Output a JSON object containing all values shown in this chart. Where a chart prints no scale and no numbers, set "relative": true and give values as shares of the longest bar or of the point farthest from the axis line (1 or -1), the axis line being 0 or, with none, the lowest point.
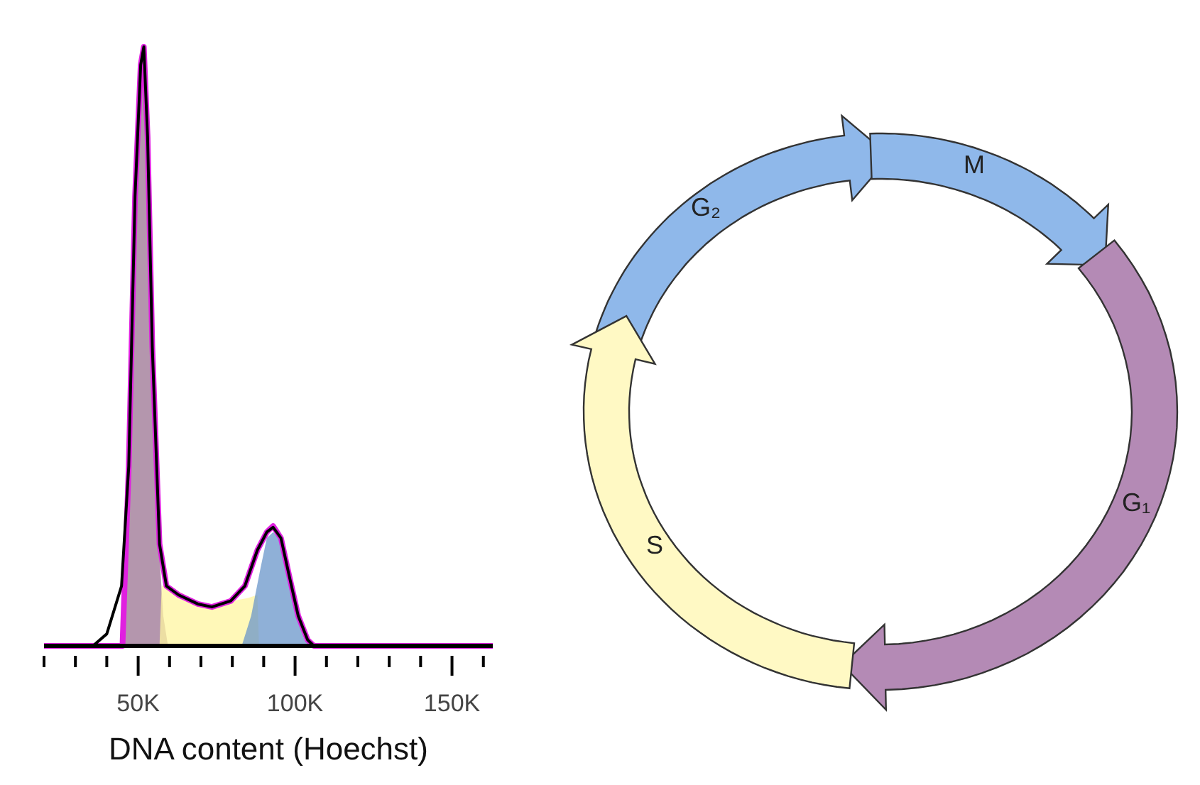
{
  "chart_data": {
    "type": "area",
    "relative": true,
    "xlabel": "DNA content (Hoechst)",
    "xlim": [
      20000,
      163000
    ],
    "xticks": [
      {
        "value": 20000,
        "label": null
      },
      {
        "value": 30000,
        "label": null
      },
      {
        "value": 40000,
        "label": null
      },
      {
        "value": 50000,
        "label": "50K"
      },
      {
        "value": 60000,
        "label": null
      },
      {
        "value": 70000,
        "label": null
      },
      {
        "value": 80000,
        "label": null
      },
      {
        "value": 90000,
        "label": null
      },
      {
        "value": 100000,
        "label": "100K"
      },
      {
        "value": 110000,
        "label": null
      },
      {
        "value": 120000,
        "label": null
      },
      {
        "value": 130000,
        "label": null
      },
      {
        "value": 140000,
        "label": null
      },
      {
        "value": 150000,
        "label": "150K"
      },
      {
        "value": 160000,
        "label": null
      }
    ],
    "series": [
      {
        "color": "#9b7391",
        "x": [
          45500,
          47000,
          49000,
          50800,
          51800,
          53000,
          54500,
          56800,
          58000,
          59500
        ],
        "values": [
          0,
          0.3,
          0.75,
          0.97,
          1.0,
          0.85,
          0.5,
          0.15,
          0.05,
          0
        ]
      },
      {
        "color": "#fff6a0",
        "x": [
          56800,
          57500,
          60000,
          65000,
          70000,
          75000,
          80000,
          85000,
          88000,
          88500
        ],
        "values": [
          0,
          0.1,
          0.1,
          0.085,
          0.07,
          0.065,
          0.075,
          0.08,
          0.085,
          0
        ]
      },
      {
        "color": "#6a95c9",
        "x": [
          83000,
          86000,
          89000,
          91000,
          93000,
          95000,
          97000,
          99000,
          101000,
          103000,
          105000
        ],
        "values": [
          0,
          0.05,
          0.13,
          0.18,
          0.19,
          0.18,
          0.14,
          0.08,
          0.04,
          0.01,
          0
        ]
      },
      {
        "type": "line",
        "color": "#e020e0",
        "x": [
          20000,
          45000,
          47000,
          49000,
          50800,
          51800,
          53000,
          54500,
          56800,
          59000,
          62900,
          69000,
          73500,
          79500,
          84000,
          88000,
          91000,
          93000,
          95500,
          98000,
          101000,
          104000,
          106000,
          163000
        ],
        "values": [
          0,
          0,
          0.3,
          0.75,
          0.97,
          1.0,
          0.85,
          0.5,
          0.17,
          0.1,
          0.085,
          0.07,
          0.065,
          0.075,
          0.1,
          0.16,
          0.19,
          0.2,
          0.18,
          0.12,
          0.05,
          0.01,
          0,
          0
        ]
      },
      {
        "type": "line",
        "color": "#000000",
        "x": [
          20000,
          35600,
          40000,
          44700,
          47000,
          49000,
          50800,
          51800,
          53000,
          54500,
          56800,
          59000,
          62900,
          69000,
          73500,
          79500,
          84000,
          88000,
          91000,
          93000,
          95500,
          98000,
          101000,
          104000,
          106000,
          163000
        ],
        "values": [
          0,
          0,
          0.02,
          0.1,
          0.3,
          0.75,
          0.97,
          1.0,
          0.85,
          0.5,
          0.17,
          0.1,
          0.085,
          0.07,
          0.065,
          0.075,
          0.1,
          0.16,
          0.19,
          0.198,
          0.18,
          0.12,
          0.05,
          0.01,
          0,
          0
        ]
      }
    ],
    "annotations": [
      "G₂",
      "M",
      "G₁",
      "S"
    ]
  }
}
